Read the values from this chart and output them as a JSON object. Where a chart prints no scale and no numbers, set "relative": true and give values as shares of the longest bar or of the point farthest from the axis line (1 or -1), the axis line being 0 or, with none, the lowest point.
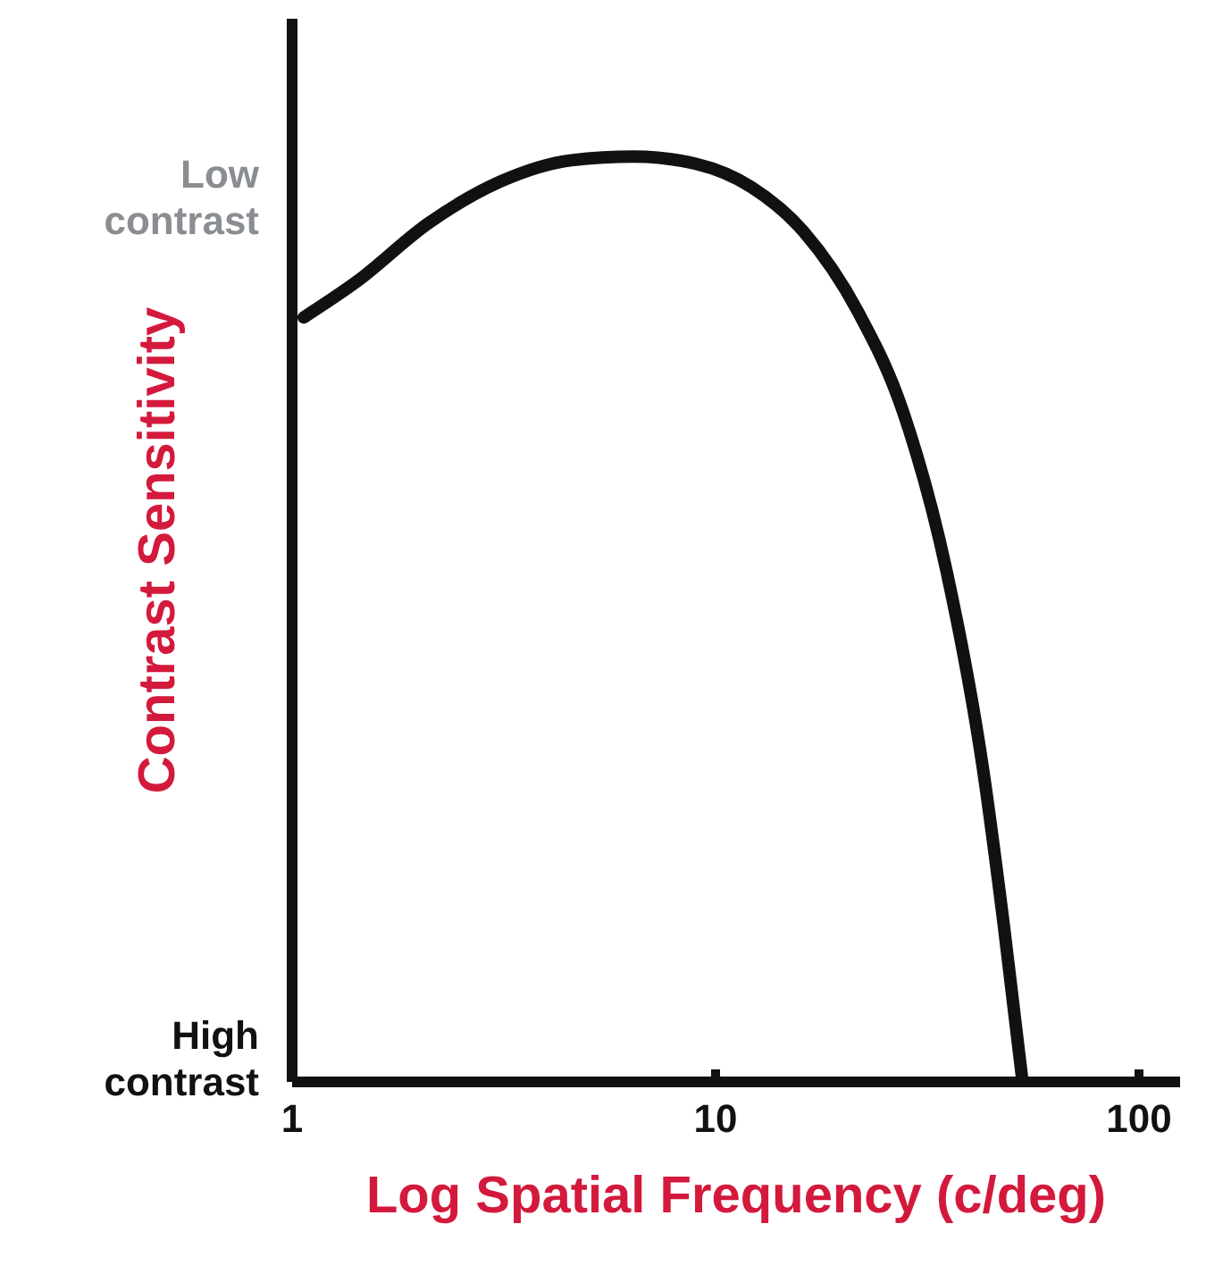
{
  "chart_data": {
    "type": "line",
    "xlabel": "Log Spatial Frequency (c/deg)",
    "ylabel": "Contrast Sensitivity",
    "annotations": [
      "Low contrast",
      "High contrast"
    ],
    "relative": true,
    "log": "x",
    "xlim": [
      1,
      125
    ],
    "xticks": [
      1,
      10,
      100
    ],
    "x": [
      1.07,
      1.43,
      2.11,
      3.12,
      4.59,
      6.45,
      9.05,
      12.2,
      16.2,
      21.8,
      27.8,
      35.3,
      43.0,
      48.3,
      53.3
    ],
    "series": [
      {
        "color": "#111111",
        "values": [
          0.826,
          0.865,
          0.928,
          0.973,
          0.996,
          1,
          0.992,
          0.967,
          0.919,
          0.832,
          0.725,
          0.551,
          0.338,
          0.164,
          0
        ]
      }
    ]
  }
}
